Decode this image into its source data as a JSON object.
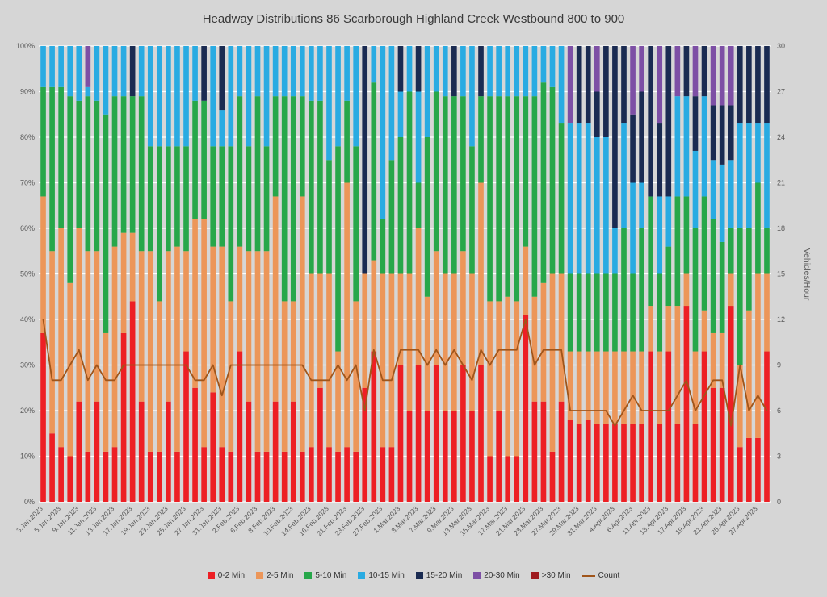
{
  "title": "Headway Distributions 86 Scarborough  Highland Creek Westbound 800 to 900",
  "chart_data": {
    "type": "bar",
    "stacked": true,
    "stacked_mode": "percent",
    "grid": true,
    "legend_position": "bottom",
    "x_label_every": 2,
    "categories": [
      "3.Jan.2023",
      "4.Jan.2023",
      "5.Jan.2023",
      "6.Jan.2023",
      "9.Jan.2023",
      "10.Jan.2023",
      "11.Jan.2023",
      "12.Jan.2023",
      "13.Jan.2023",
      "16.Jan.2023",
      "17.Jan.2023",
      "18.Jan.2023",
      "19.Jan.2023",
      "20.Jan.2023",
      "23.Jan.2023",
      "24.Jan.2023",
      "25.Jan.2023",
      "26.Jan.2023",
      "27.Jan.2023",
      "30.Jan.2023",
      "31.Jan.2023",
      "1.Feb.2023",
      "2.Feb.2023",
      "3.Feb.2023",
      "6.Feb.2023",
      "7.Feb.2023",
      "8.Feb.2023",
      "9.Feb.2023",
      "10.Feb.2023",
      "13.Feb.2023",
      "14.Feb.2023",
      "15.Feb.2023",
      "16.Feb.2023",
      "17.Feb.2023",
      "21.Feb.2023",
      "22.Feb.2023",
      "23.Feb.2023",
      "24.Feb.2023",
      "27.Feb.2023",
      "28.Feb.2023",
      "1.Mar.2023",
      "2.Mar.2023",
      "3.Mar.2023",
      "6.Mar.2023",
      "7.Mar.2023",
      "8.Mar.2023",
      "9.Mar.2023",
      "10.Mar.2023",
      "13.Mar.2023",
      "14.Mar.2023",
      "15.Mar.2023",
      "16.Mar.2023",
      "17.Mar.2023",
      "20.Mar.2023",
      "21.Mar.2023",
      "22.Mar.2023",
      "23.Mar.2023",
      "24.Mar.2023",
      "27.Mar.2023",
      "28.Mar.2023",
      "29.Mar.2023",
      "30.Mar.2023",
      "31.Mar.2023",
      "3.Apr.2023",
      "4.Apr.2023",
      "5.Apr.2023",
      "6.Apr.2023",
      "10.Apr.2023",
      "11.Apr.2023",
      "12.Apr.2023",
      "13.Apr.2023",
      "14.Apr.2023",
      "17.Apr.2023",
      "18.Apr.2023",
      "19.Apr.2023",
      "20.Apr.2023",
      "21.Apr.2023",
      "24.Apr.2023",
      "25.Apr.2023",
      "26.Apr.2023",
      "27.Apr.2023",
      "28.Apr.2023"
    ],
    "series": [
      {
        "name": "0-2 Min",
        "color": "#ED1F24",
        "values": [
          37,
          15,
          12,
          10,
          22,
          11,
          22,
          11,
          12,
          37,
          44,
          22,
          11,
          11,
          22,
          11,
          33,
          25,
          12,
          24,
          12,
          11,
          33,
          22,
          11,
          11,
          22,
          11,
          22,
          11,
          12,
          25,
          12,
          11,
          12,
          11,
          25,
          33,
          12,
          12,
          30,
          20,
          30,
          20,
          30,
          20,
          20,
          30,
          20,
          30,
          10,
          20,
          10,
          10,
          41,
          22,
          22,
          11,
          22,
          18,
          17,
          18,
          17,
          17,
          17,
          17,
          17,
          17,
          33,
          17,
          33,
          17,
          43,
          17,
          33,
          25,
          25,
          43,
          12,
          14,
          14,
          33
        ]
      },
      {
        "name": "2-5 Min",
        "color": "#EC9659",
        "values": [
          30,
          40,
          48,
          38,
          38,
          44,
          33,
          26,
          44,
          22,
          15,
          33,
          44,
          33,
          33,
          45,
          22,
          37,
          50,
          32,
          44,
          33,
          23,
          33,
          44,
          44,
          45,
          33,
          22,
          56,
          38,
          25,
          38,
          22,
          58,
          33,
          25,
          20,
          38,
          38,
          20,
          30,
          30,
          25,
          25,
          30,
          30,
          25,
          30,
          40,
          34,
          24,
          35,
          34,
          15,
          23,
          26,
          39,
          28,
          15,
          16,
          15,
          16,
          16,
          16,
          16,
          16,
          16,
          10,
          16,
          10,
          26,
          7,
          16,
          9,
          12,
          12,
          7,
          18,
          28,
          36,
          17
        ]
      },
      {
        "name": "5-10 Min",
        "color": "#27A74A",
        "values": [
          24,
          36,
          31,
          41,
          28,
          34,
          33,
          48,
          33,
          30,
          30,
          34,
          23,
          34,
          23,
          22,
          23,
          26,
          26,
          22,
          22,
          34,
          33,
          23,
          34,
          23,
          22,
          45,
          45,
          22,
          38,
          38,
          25,
          45,
          18,
          34,
          0,
          39,
          12,
          25,
          30,
          40,
          10,
          35,
          35,
          39,
          39,
          34,
          28,
          19,
          45,
          45,
          44,
          45,
          33,
          44,
          44,
          41,
          33,
          17,
          17,
          17,
          17,
          17,
          17,
          27,
          17,
          27,
          24,
          17,
          13,
          24,
          17,
          27,
          25,
          25,
          20,
          10,
          30,
          18,
          20,
          10
        ]
      },
      {
        "name": "10-15 Min",
        "color": "#29ABE2",
        "values": [
          9,
          9,
          9,
          11,
          12,
          2,
          12,
          15,
          11,
          11,
          0,
          11,
          22,
          22,
          22,
          22,
          22,
          12,
          0,
          22,
          8,
          22,
          11,
          22,
          11,
          22,
          11,
          11,
          11,
          11,
          12,
          12,
          25,
          22,
          12,
          22,
          0,
          8,
          38,
          25,
          10,
          10,
          20,
          20,
          10,
          11,
          0,
          11,
          22,
          0,
          11,
          11,
          11,
          11,
          11,
          11,
          8,
          9,
          17,
          33,
          33,
          33,
          30,
          30,
          10,
          23,
          20,
          10,
          0,
          17,
          11,
          22,
          22,
          17,
          22,
          13,
          17,
          15,
          23,
          23,
          13,
          23
        ]
      },
      {
        "name": "15-20 Min",
        "color": "#1A2B52",
        "values": [
          0,
          0,
          0,
          0,
          0,
          0,
          0,
          0,
          0,
          0,
          11,
          0,
          0,
          0,
          0,
          0,
          0,
          0,
          12,
          0,
          14,
          0,
          0,
          0,
          0,
          0,
          0,
          0,
          0,
          0,
          0,
          0,
          0,
          0,
          0,
          0,
          50,
          0,
          0,
          0,
          10,
          0,
          10,
          0,
          0,
          0,
          11,
          0,
          0,
          11,
          0,
          0,
          0,
          0,
          0,
          0,
          0,
          0,
          0,
          0,
          17,
          17,
          10,
          20,
          40,
          17,
          15,
          20,
          33,
          16,
          33,
          0,
          11,
          12,
          11,
          12,
          13,
          12,
          17,
          17,
          17,
          17
        ]
      },
      {
        "name": "20-30 Min",
        "color": "#7D4FA5",
        "values": [
          0,
          0,
          0,
          0,
          0,
          9,
          0,
          0,
          0,
          0,
          0,
          0,
          0,
          0,
          0,
          0,
          0,
          0,
          0,
          0,
          0,
          0,
          0,
          0,
          0,
          0,
          0,
          0,
          0,
          0,
          0,
          0,
          0,
          0,
          0,
          0,
          0,
          0,
          0,
          0,
          0,
          0,
          0,
          0,
          0,
          0,
          0,
          0,
          0,
          0,
          0,
          0,
          0,
          0,
          0,
          0,
          0,
          0,
          0,
          17,
          0,
          0,
          10,
          0,
          0,
          0,
          15,
          10,
          0,
          17,
          0,
          11,
          0,
          11,
          0,
          13,
          13,
          13,
          0,
          0,
          0,
          0
        ]
      },
      {
        "name": ">30 Min",
        "color": "#9E1B1F",
        "values": [
          0,
          0,
          0,
          0,
          0,
          0,
          0,
          0,
          0,
          0,
          0,
          0,
          0,
          0,
          0,
          0,
          0,
          0,
          0,
          0,
          0,
          0,
          0,
          0,
          0,
          0,
          0,
          0,
          0,
          0,
          0,
          0,
          0,
          0,
          0,
          0,
          0,
          0,
          0,
          0,
          0,
          0,
          0,
          0,
          0,
          0,
          0,
          0,
          0,
          0,
          0,
          0,
          0,
          0,
          0,
          0,
          0,
          0,
          0,
          0,
          0,
          0,
          0,
          0,
          0,
          0,
          0,
          0,
          0,
          0,
          0,
          0,
          0,
          0,
          0,
          0,
          0,
          0,
          0,
          0,
          0,
          0
        ]
      }
    ],
    "line_series": {
      "name": "Count",
      "color": "#A0551A",
      "values": [
        12,
        8,
        8,
        9,
        10,
        8,
        9,
        8,
        8,
        9,
        9,
        9,
        9,
        9,
        9,
        9,
        9,
        8,
        8,
        9,
        7,
        9,
        9,
        9,
        9,
        9,
        9,
        9,
        9,
        9,
        8,
        8,
        8,
        9,
        8,
        9,
        6,
        10,
        8,
        8,
        10,
        10,
        10,
        9,
        10,
        9,
        10,
        9,
        8,
        10,
        9,
        10,
        10,
        10,
        12,
        9,
        10,
        10,
        10,
        6,
        6,
        6,
        6,
        6,
        5,
        6,
        7,
        6,
        6,
        6,
        6,
        7,
        8,
        6,
        7,
        8,
        8,
        5,
        9,
        6,
        7,
        6
      ]
    },
    "y_left": {
      "min": 0,
      "max": 100,
      "ticks": [
        "0%",
        "10%",
        "20%",
        "30%",
        "40%",
        "50%",
        "60%",
        "70%",
        "80%",
        "90%",
        "100%"
      ]
    },
    "y_right": {
      "min": 0,
      "max": 30,
      "step": 3,
      "label": "Vehicles/Hour",
      "ticks": [
        0,
        3,
        6,
        9,
        12,
        15,
        18,
        21,
        24,
        27,
        30
      ]
    }
  },
  "colors": {
    "background": "#D6D6D6",
    "gridline": "#FFFFFF",
    "axis_text": "#595959",
    "title_text": "#3A3A3A"
  }
}
